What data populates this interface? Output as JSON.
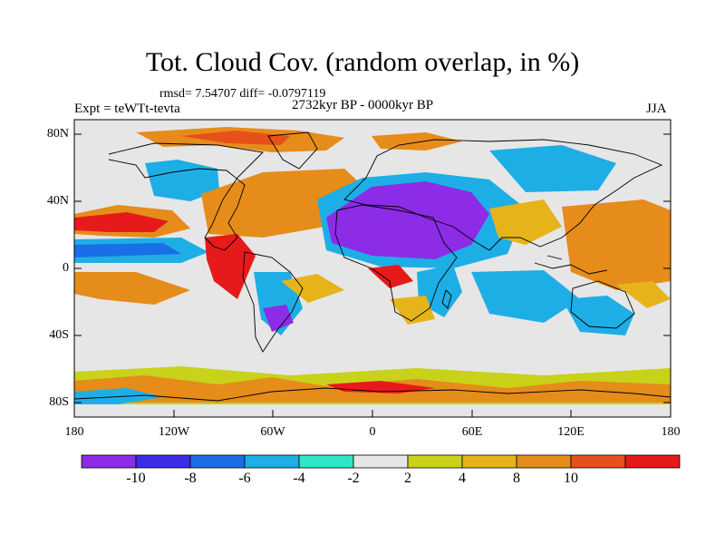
{
  "title": "Tot. Cloud Cov. (random overlap, in %)",
  "stats": "rmsd= 7.54707 diff= -0.0797119",
  "experiment": "Expt = teWTt-tevta",
  "period": "2732kyr BP - 0000kyr BP",
  "season": "JJA",
  "axes": {
    "lat_ticks": [
      "80N",
      "40N",
      "0",
      "40S",
      "80S"
    ],
    "lon_ticks": [
      "180",
      "120W",
      "60W",
      "0",
      "60E",
      "120E",
      "180"
    ]
  },
  "colorbar": {
    "colors": [
      "#8c2ce6",
      "#3c2ce6",
      "#1a6ee6",
      "#1eaee6",
      "#30e6c8",
      "#e6e6e6",
      "#c8d21a",
      "#e6b41a",
      "#e68c1a",
      "#e6501a",
      "#e61a1a"
    ],
    "labels": [
      "-10",
      "-8",
      "-6",
      "-4",
      "-2",
      "2",
      "4",
      "8",
      "10"
    ]
  },
  "colors": {
    "ocean_neutral": "#e6e6e6",
    "coastline": "#000000"
  }
}
